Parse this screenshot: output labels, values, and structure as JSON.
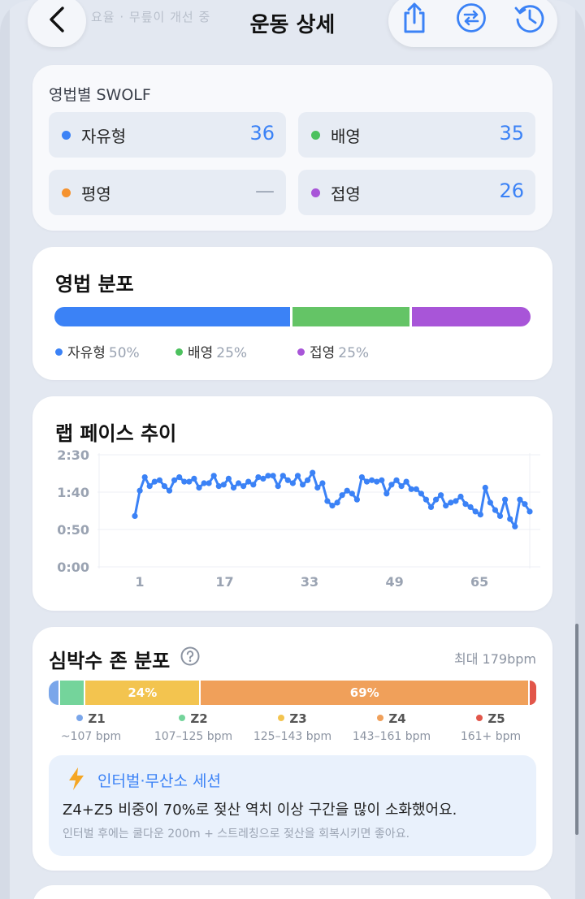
{
  "header": {
    "title": "운동 상세",
    "ghost_text": "요율 · 무릎이 개선 중",
    "back_icon": "chevron-left-icon",
    "action_icons": [
      "share-icon",
      "swap-icon",
      "history-icon"
    ]
  },
  "swolf": {
    "title": "영법별 SWOLF",
    "items": [
      {
        "label": "자유형",
        "value": "36",
        "color": "#3b82f6"
      },
      {
        "label": "배영",
        "value": "35",
        "color": "#4cc15e"
      },
      {
        "label": "평영",
        "value": "—",
        "color": "#f5922f"
      },
      {
        "label": "접영",
        "value": "26",
        "color": "#a855d8"
      }
    ]
  },
  "stroke_dist": {
    "title": "영법 분포",
    "items": [
      {
        "label": "자유형",
        "pct": "50%",
        "value": 50,
        "color": "#3b82f6"
      },
      {
        "label": "배영",
        "pct": "25%",
        "value": 25,
        "color": "#64c466"
      },
      {
        "label": "접영",
        "pct": "25%",
        "value": 25,
        "color": "#a855d8"
      }
    ]
  },
  "lap_pace": {
    "title": "랩 페이스 추이"
  },
  "chart_data": {
    "type": "line",
    "title": "랩 페이스 추이",
    "xlabel": "",
    "ylabel": "",
    "y_ticks": [
      "0:00",
      "0:50",
      "1:40",
      "2:30"
    ],
    "x_ticks": [
      "1",
      "17",
      "33",
      "49",
      "65"
    ],
    "x_tick_values": [
      1,
      17,
      33,
      49,
      65
    ],
    "ylim_seconds": [
      0,
      150
    ],
    "xlim": [
      1,
      76
    ],
    "grid": true,
    "series": [
      {
        "color": "#3b82f6",
        "y_seconds": [
          68,
          102,
          120,
          108,
          114,
          116,
          108,
          102,
          116,
          120,
          114,
          114,
          118,
          106,
          112,
          112,
          122,
          108,
          110,
          118,
          106,
          112,
          108,
          114,
          110,
          120,
          118,
          122,
          122,
          108,
          122,
          116,
          112,
          122,
          110,
          116,
          126,
          106,
          112,
          88,
          82,
          86,
          96,
          102,
          98,
          90,
          120,
          114,
          116,
          114,
          116,
          98,
          110,
          116,
          108,
          114,
          104,
          104,
          98,
          90,
          80,
          90,
          96,
          82,
          86,
          88,
          94,
          84,
          80,
          74,
          70,
          106,
          86,
          76,
          68,
          90,
          64,
          54,
          90,
          84,
          74
        ]
      }
    ]
  },
  "hr_zones": {
    "title": "심박수 존 분포",
    "help_icon": "help-circle-icon",
    "max_label": "최대 179bpm",
    "zones": [
      {
        "name": "Z1",
        "range": "~107 bpm",
        "color": "#7aa6ea",
        "pct": 2,
        "label": ""
      },
      {
        "name": "Z2",
        "range": "107–125 bpm",
        "color": "#74d49b",
        "pct": 5,
        "label": ""
      },
      {
        "name": "Z3",
        "range": "125–143 bpm",
        "color": "#f3c44f",
        "pct": 24,
        "label": "24%"
      },
      {
        "name": "Z4",
        "range": "143–161 bpm",
        "color": "#f0a05a",
        "pct": 69,
        "label": "69%"
      },
      {
        "name": "Z5",
        "range": "161+ bpm",
        "color": "#e2564a",
        "pct": 1,
        "label": ""
      }
    ]
  },
  "insight": {
    "icon": "lightning-icon",
    "title": "인터벌·무산소 세션",
    "main": "Z4+Z5 비중이 70%로 젖산 역치 이상 구간을 많이 소화했어요.",
    "sub": "인터벌 후에는 쿨다운 200m + 스트레칭으로 젖산을 회복시키면 좋아요."
  }
}
